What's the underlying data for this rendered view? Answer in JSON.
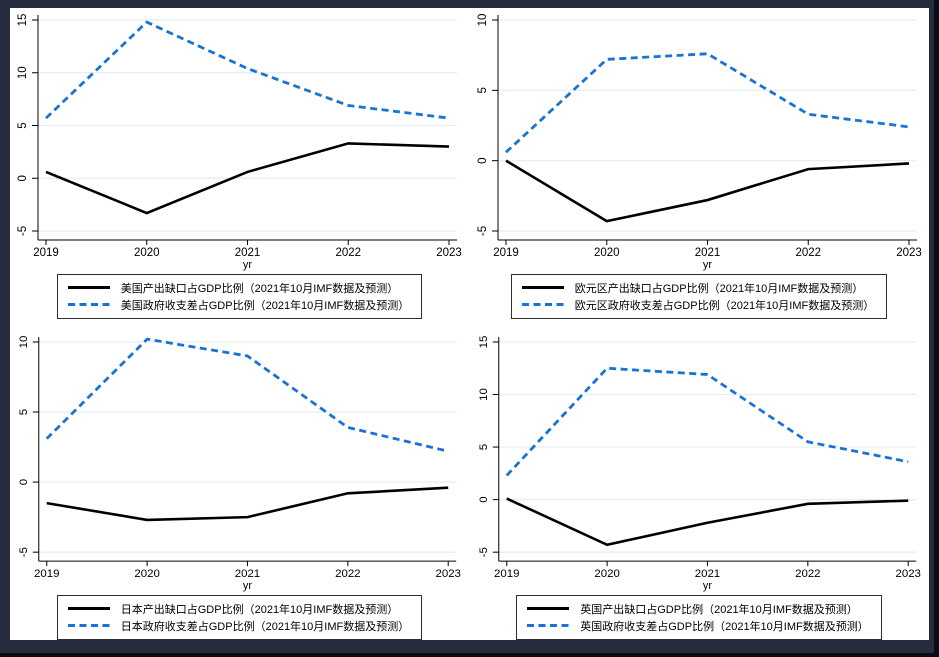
{
  "page": {
    "frame_background": "#252c3e",
    "canvas_background": "#ffffff"
  },
  "style": {
    "accent_blue": "#1874d2",
    "line_black": "#000000",
    "gridline": "#e3eef3",
    "axis": "#000000",
    "legend_border": "#2f2f2f"
  },
  "chart_data": [
    {
      "id": "us",
      "type": "line",
      "x": [
        2019,
        2020,
        2021,
        2022,
        2023
      ],
      "xticks": [
        "2019",
        "2020",
        "2021",
        "2022",
        "2023"
      ],
      "xlabel": "yr",
      "ylim": [
        -5,
        15
      ],
      "yticks": [
        -5,
        0,
        5,
        10,
        15
      ],
      "grid": true,
      "legend_position": "below-plot",
      "series": [
        {
          "name": "美国产出缺口占GDP比例（2021年10月IMF数据及预测）",
          "style": "solid",
          "color": "#000000",
          "values": [
            0.6,
            -3.3,
            0.6,
            3.3,
            3.0
          ]
        },
        {
          "name": "美国政府收支差占GDP比例（2021年10月IMF数据及预测）",
          "style": "dashed",
          "color": "#1874d2",
          "values": [
            5.7,
            14.8,
            10.4,
            6.9,
            5.7
          ]
        }
      ]
    },
    {
      "id": "eurozone",
      "type": "line",
      "x": [
        2019,
        2020,
        2021,
        2022,
        2023
      ],
      "xticks": [
        "2019",
        "2020",
        "2021",
        "2022",
        "2023"
      ],
      "xlabel": "yr",
      "ylim": [
        -5,
        10
      ],
      "yticks": [
        -5,
        0,
        5,
        10
      ],
      "grid": true,
      "legend_position": "below-plot",
      "series": [
        {
          "name": "欧元区产出缺口占GDP比例（2021年10月IMF数据及预测）",
          "style": "solid",
          "color": "#000000",
          "values": [
            0.0,
            -4.3,
            -2.8,
            -0.6,
            -0.2
          ]
        },
        {
          "name": "欧元区政府收支差占GDP比例（2021年10月IMF数据及预测）",
          "style": "dashed",
          "color": "#1874d2",
          "values": [
            0.6,
            7.2,
            7.6,
            3.3,
            2.4
          ]
        }
      ]
    },
    {
      "id": "japan",
      "type": "line",
      "x": [
        2019,
        2020,
        2021,
        2022,
        2023
      ],
      "xticks": [
        "2019",
        "2020",
        "2021",
        "2022",
        "2023"
      ],
      "xlabel": "yr",
      "ylim": [
        -5,
        10
      ],
      "yticks": [
        -5,
        0,
        5,
        10
      ],
      "grid": true,
      "legend_position": "below-plot",
      "series": [
        {
          "name": "日本产出缺口占GDP比例（2021年10月IMF数据及预测）",
          "style": "solid",
          "color": "#000000",
          "values": [
            -1.5,
            -2.7,
            -2.5,
            -0.8,
            -0.4
          ]
        },
        {
          "name": "日本政府收支差占GDP比例（2021年10月IMF数据及预测）",
          "style": "dashed",
          "color": "#1874d2",
          "values": [
            3.1,
            10.2,
            9.0,
            3.9,
            2.2
          ]
        }
      ]
    },
    {
      "id": "uk",
      "type": "line",
      "x": [
        2019,
        2020,
        2021,
        2022,
        2023
      ],
      "xticks": [
        "2019",
        "2020",
        "2021",
        "2022",
        "2023"
      ],
      "xlabel": "yr",
      "ylim": [
        -5,
        15
      ],
      "yticks": [
        -5,
        0,
        5,
        10,
        15
      ],
      "grid": true,
      "legend_position": "below-plot",
      "series": [
        {
          "name": "英国产出缺口占GDP比例（2021年10月IMF数据及预测）",
          "style": "solid",
          "color": "#000000",
          "values": [
            0.1,
            -4.3,
            -2.2,
            -0.4,
            -0.1
          ]
        },
        {
          "name": "英国政府收支差占GDP比例（2021年10月IMF数据及预测）",
          "style": "dashed",
          "color": "#1874d2",
          "values": [
            2.3,
            12.5,
            11.9,
            5.5,
            3.6
          ]
        }
      ]
    }
  ]
}
